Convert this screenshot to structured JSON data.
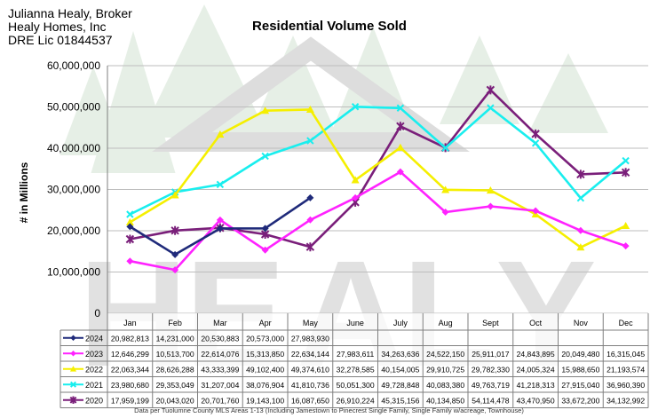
{
  "header": {
    "broker_name": "Julianna Healy, Broker",
    "company": "Healy Homes, Inc",
    "license": "DRE Lic 01844537"
  },
  "watermark": {
    "text": "HEALY",
    "color": "#c9c9c9",
    "tree_color": "#e6efe6"
  },
  "footer": {
    "note": "Data per Tuolumne County MLS Areas 1-13 (Including Jamestown to Pinecrest Single Family, Single Family w/acreage, Townhouse)"
  },
  "chart_data": {
    "type": "line",
    "title": "Residential Volume Sold",
    "xlabel": "",
    "ylabel": "# in Millions",
    "ylim": [
      0,
      60000000
    ],
    "yticks": [
      0,
      10000000,
      20000000,
      30000000,
      40000000,
      50000000,
      60000000
    ],
    "ytick_labels": [
      "0",
      "10,000,000",
      "20,000,000",
      "30,000,000",
      "40,000,000",
      "50,000,000",
      "60,000,000"
    ],
    "grid": true,
    "categories": [
      "Jan",
      "Feb",
      "Mar",
      "Apr",
      "May",
      "June",
      "July",
      "Aug",
      "Sept",
      "Oct",
      "Nov",
      "Dec"
    ],
    "series": [
      {
        "name": "2024",
        "color": "#1f2a7a",
        "marker": "diamond",
        "values": [
          20982813,
          14231000,
          20530883,
          20573000,
          27983930,
          null,
          null,
          null,
          null,
          null,
          null,
          null
        ],
        "labels": [
          "20,982,813",
          "14,231,000",
          "20,530,883",
          "20,573,000",
          "27,983,930",
          "",
          "",
          "",
          "",
          "",
          "",
          ""
        ]
      },
      {
        "name": "2023",
        "color": "#ff22ff",
        "marker": "diamond",
        "values": [
          12646299,
          10513700,
          22614076,
          15313850,
          22634144,
          27983611,
          34263636,
          24522150,
          25911017,
          24843895,
          20049480,
          16315045
        ],
        "labels": [
          "12,646,299",
          "10,513,700",
          "22,614,076",
          "15,313,850",
          "22,634,144",
          "27,983,611",
          "34,263,636",
          "24,522,150",
          "25,911,017",
          "24,843,895",
          "20,049,480",
          "16,315,045"
        ]
      },
      {
        "name": "2022",
        "color": "#f5ef00",
        "marker": "triangle",
        "values": [
          22063344,
          28626288,
          43333399,
          49102400,
          49374610,
          32278585,
          40154005,
          29910725,
          29782330,
          24005324,
          15988650,
          21193574
        ],
        "labels": [
          "22,063,344",
          "28,626,288",
          "43,333,399",
          "49,102,400",
          "49,374,610",
          "32,278,585",
          "40,154,005",
          "29,910,725",
          "29,782,330",
          "24,005,324",
          "15,988,650",
          "21,193,574"
        ]
      },
      {
        "name": "2021",
        "color": "#19eeee",
        "marker": "x",
        "values": [
          23980680,
          29353049,
          31207004,
          38076904,
          41810736,
          50051300,
          49728848,
          40083380,
          49763719,
          41218313,
          27915040,
          36960390
        ],
        "labels": [
          "23,980,680",
          "29,353,049",
          "31,207,004",
          "38,076,904",
          "41,810,736",
          "50,051,300",
          "49,728,848",
          "40,083,380",
          "49,763,719",
          "41,218,313",
          "27,915,040",
          "36,960,390"
        ]
      },
      {
        "name": "2020",
        "color": "#7a1f7a",
        "marker": "star",
        "values": [
          17959199,
          20043020,
          20701760,
          19143100,
          16087650,
          26910224,
          45315156,
          40134850,
          54114478,
          43470950,
          33672200,
          34132992
        ],
        "labels": [
          "17,959,199",
          "20,043,020",
          "20,701,760",
          "19,143,100",
          "16,087,650",
          "26,910,224",
          "45,315,156",
          "40,134,850",
          "54,114,478",
          "43,470,950",
          "33,672,200",
          "34,132,992"
        ]
      }
    ]
  }
}
